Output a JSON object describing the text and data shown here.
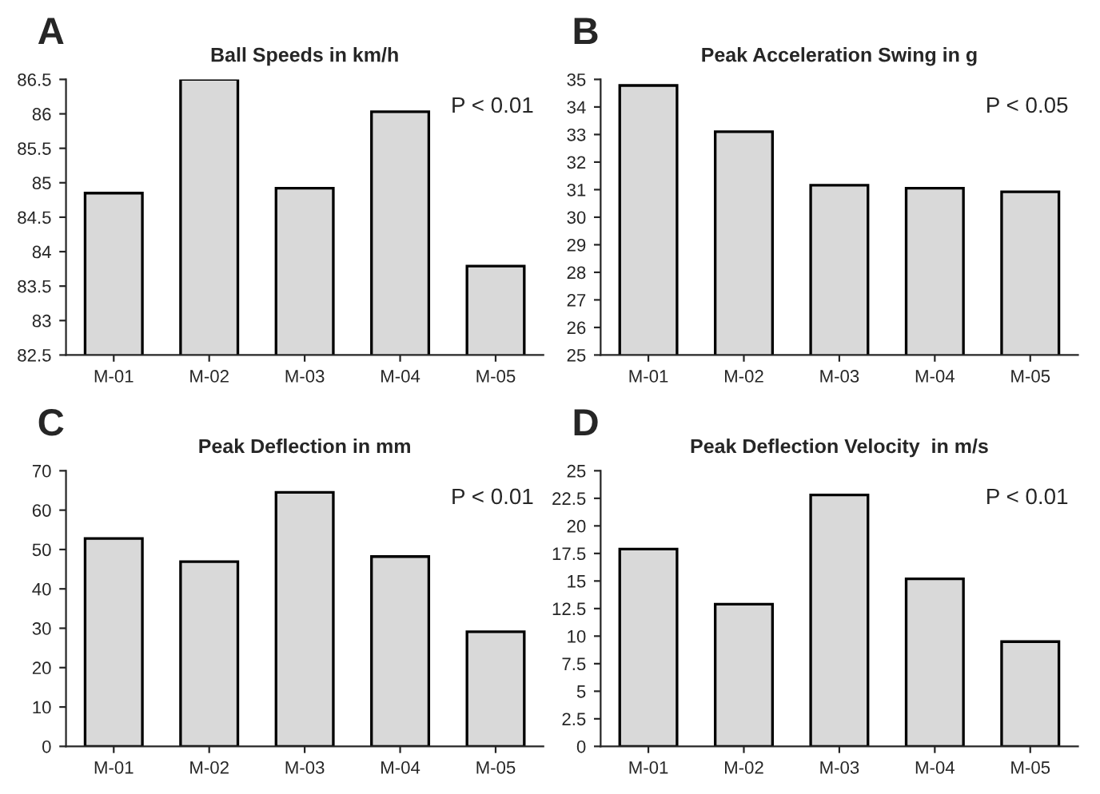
{
  "chart_data": [
    {
      "type": "bar",
      "title": "Ball Speeds in km/h",
      "categories": [
        "M-01",
        "M-02",
        "M-03",
        "M-04",
        "M-05"
      ],
      "values": [
        84.85,
        86.5,
        84.92,
        86.03,
        83.79
      ],
      "color": "#d9d9d9",
      "ylim": [
        82.5,
        86.5
      ],
      "yticks": [
        82.5,
        83,
        83.5,
        84,
        84.5,
        85,
        85.5,
        86,
        86.5
      ],
      "grid": false,
      "legend": false,
      "annotations": [
        "A",
        "P < 0.01"
      ]
    },
    {
      "type": "bar",
      "title": "Peak Acceleration Swing in g",
      "categories": [
        "M-01",
        "M-02",
        "M-03",
        "M-04",
        "M-05"
      ],
      "values": [
        34.78,
        33.1,
        31.16,
        31.05,
        30.92
      ],
      "color": "#d9d9d9",
      "ylim": [
        25,
        35
      ],
      "yticks": [
        25,
        26,
        27,
        28,
        29,
        30,
        31,
        32,
        33,
        34,
        35
      ],
      "grid": false,
      "legend": false,
      "annotations": [
        "B",
        "P < 0.05"
      ]
    },
    {
      "type": "bar",
      "title": "Peak Deflection in mm",
      "categories": [
        "M-01",
        "M-02",
        "M-03",
        "M-04",
        "M-05"
      ],
      "values": [
        52.8,
        46.9,
        64.5,
        48.2,
        29.1
      ],
      "color": "#d9d9d9",
      "ylim": [
        0,
        70
      ],
      "yticks": [
        0,
        10,
        20,
        30,
        40,
        50,
        60,
        70
      ],
      "grid": false,
      "legend": false,
      "annotations": [
        "C",
        "P < 0.01"
      ]
    },
    {
      "type": "bar",
      "title": "Peak Deflection Velocity  in m/s",
      "categories": [
        "M-01",
        "M-02",
        "M-03",
        "M-04",
        "M-05"
      ],
      "values": [
        17.9,
        12.9,
        22.8,
        15.2,
        9.5
      ],
      "color": "#d9d9d9",
      "ylim": [
        0,
        25
      ],
      "yticks": [
        0,
        2.5,
        5,
        7.5,
        10,
        12.5,
        15,
        17.5,
        20,
        22.5,
        25
      ],
      "grid": false,
      "legend": false,
      "annotations": [
        "D",
        "P < 0.01"
      ]
    }
  ]
}
